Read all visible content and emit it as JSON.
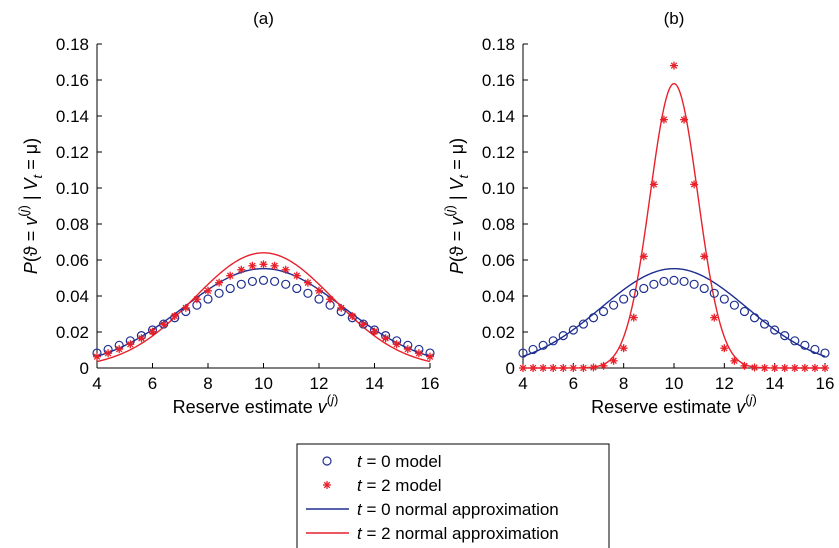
{
  "chart_data": [
    {
      "type": "scatter",
      "title": "(a)",
      "xlabel": "Reserve estimate v^(j)",
      "ylabel": "P(ϑ = v^(j) | V_t = μ)",
      "xlim": [
        4,
        16
      ],
      "ylim": [
        0,
        0.18
      ],
      "xticks": [
        "4",
        "6",
        "8",
        "10",
        "12",
        "14",
        "16"
      ],
      "yticks": [
        "0",
        "0.02",
        "0.04",
        "0.06",
        "0.08",
        "0.10",
        "0.12",
        "0.14",
        "0.16",
        "0.18"
      ],
      "grid": false,
      "series": [
        {
          "name": "t = 0 model",
          "kind": "points",
          "marker": "circle",
          "color": "#1f2f8f",
          "x": [
            4,
            4.4,
            4.8,
            5.2,
            5.6,
            6,
            6.4,
            6.8,
            7.2,
            7.6,
            8,
            8.4,
            8.8,
            9.2,
            9.6,
            10,
            10.4,
            10.8,
            11.2,
            11.6,
            12,
            12.4,
            12.8,
            13.2,
            13.6,
            14,
            14.4,
            14.8,
            15.2,
            15.6,
            16
          ],
          "y": [
            0.0083,
            0.0103,
            0.0126,
            0.0151,
            0.018,
            0.0211,
            0.0244,
            0.0279,
            0.0314,
            0.0349,
            0.0383,
            0.0415,
            0.0442,
            0.0465,
            0.0481,
            0.0487,
            0.0481,
            0.0465,
            0.0442,
            0.0415,
            0.0383,
            0.0349,
            0.0314,
            0.0279,
            0.0244,
            0.0211,
            0.018,
            0.0151,
            0.0126,
            0.0103,
            0.0083
          ]
        },
        {
          "name": "t = 2 model",
          "kind": "points",
          "marker": "asterisk",
          "color": "#e8212b",
          "x": [
            4,
            4.4,
            4.8,
            5.2,
            5.6,
            6,
            6.4,
            6.8,
            7.2,
            7.6,
            8,
            8.4,
            8.8,
            9.2,
            9.6,
            10,
            10.4,
            10.8,
            11.2,
            11.6,
            12,
            12.4,
            12.8,
            13.2,
            13.6,
            14,
            14.4,
            14.8,
            15.2,
            15.6,
            16
          ],
          "y": [
            0.0063,
            0.0082,
            0.0105,
            0.0132,
            0.0165,
            0.0202,
            0.0243,
            0.0288,
            0.0334,
            0.0382,
            0.0429,
            0.0474,
            0.0513,
            0.0546,
            0.0568,
            0.0576,
            0.0568,
            0.0546,
            0.0513,
            0.0474,
            0.0429,
            0.0382,
            0.0334,
            0.0288,
            0.0243,
            0.0202,
            0.0165,
            0.0132,
            0.0105,
            0.0082,
            0.0063
          ]
        },
        {
          "name": "t = 0 normal approximation",
          "kind": "line",
          "color": "#1f2f8f",
          "mean": 10,
          "sd": 2.9,
          "peak": 0.0552
        },
        {
          "name": "t = 2 normal approximation",
          "kind": "line",
          "color": "#e8212b",
          "mean": 10,
          "sd": 2.5,
          "peak": 0.064
        }
      ]
    },
    {
      "type": "scatter",
      "title": "(b)",
      "xlabel": "Reserve estimate v^(j)",
      "ylabel": "P(ϑ = v^(j) | V_t = μ)",
      "xlim": [
        4,
        16
      ],
      "ylim": [
        0,
        0.18
      ],
      "xticks": [
        "4",
        "6",
        "8",
        "10",
        "12",
        "14",
        "16"
      ],
      "yticks": [
        "0",
        "0.02",
        "0.04",
        "0.06",
        "0.08",
        "0.10",
        "0.12",
        "0.14",
        "0.16",
        "0.18"
      ],
      "grid": false,
      "series": [
        {
          "name": "t = 0 model",
          "kind": "points",
          "marker": "circle",
          "color": "#1f2f8f",
          "x": [
            4,
            4.4,
            4.8,
            5.2,
            5.6,
            6,
            6.4,
            6.8,
            7.2,
            7.6,
            8,
            8.4,
            8.8,
            9.2,
            9.6,
            10,
            10.4,
            10.8,
            11.2,
            11.6,
            12,
            12.4,
            12.8,
            13.2,
            13.6,
            14,
            14.4,
            14.8,
            15.2,
            15.6,
            16
          ],
          "y": [
            0.0083,
            0.0103,
            0.0126,
            0.0151,
            0.018,
            0.0211,
            0.0244,
            0.0279,
            0.0314,
            0.0349,
            0.0383,
            0.0415,
            0.0442,
            0.0465,
            0.0481,
            0.0487,
            0.0481,
            0.0465,
            0.0442,
            0.0415,
            0.0383,
            0.0349,
            0.0314,
            0.0279,
            0.0244,
            0.0211,
            0.018,
            0.0151,
            0.0126,
            0.0103,
            0.0083
          ]
        },
        {
          "name": "t = 2 model",
          "kind": "points",
          "marker": "asterisk",
          "color": "#e8212b",
          "x": [
            4,
            4.4,
            4.8,
            5.2,
            5.6,
            6,
            6.4,
            6.8,
            7.2,
            7.6,
            8,
            8.4,
            8.8,
            9.2,
            9.6,
            10,
            10.4,
            10.8,
            11.2,
            11.6,
            12,
            12.4,
            12.8,
            13.2,
            13.6,
            14,
            14.4,
            14.8,
            15.2,
            15.6,
            16
          ],
          "y": [
            0,
            0,
            0,
            0,
            0,
            0,
            0,
            0.0003,
            0.0012,
            0.004,
            0.011,
            0.028,
            0.062,
            0.102,
            0.138,
            0.168,
            0.138,
            0.102,
            0.062,
            0.028,
            0.011,
            0.004,
            0.0012,
            0.0003,
            0,
            0,
            0,
            0,
            0,
            0,
            0
          ]
        },
        {
          "name": "t = 0 normal approximation",
          "kind": "line",
          "color": "#1f2f8f",
          "mean": 10,
          "sd": 2.9,
          "peak": 0.0552
        },
        {
          "name": "t = 2 normal approximation",
          "kind": "line",
          "color": "#e8212b",
          "mean": 10,
          "sd": 0.95,
          "peak": 0.158
        }
      ]
    }
  ],
  "legend": {
    "placement": "bottom-center",
    "entries": [
      {
        "pre": "t",
        "post": " = 0 model",
        "symbol": "circle",
        "color": "#1f2f8f"
      },
      {
        "pre": "t",
        "post": " = 2 model",
        "symbol": "asterisk",
        "color": "#e8212b"
      },
      {
        "pre": "t",
        "post": " = 0 normal approximation",
        "symbol": "line",
        "color": "#1f2f8f"
      },
      {
        "pre": "t",
        "post": " = 2 normal approximation",
        "symbol": "line",
        "color": "#e8212b"
      }
    ]
  }
}
